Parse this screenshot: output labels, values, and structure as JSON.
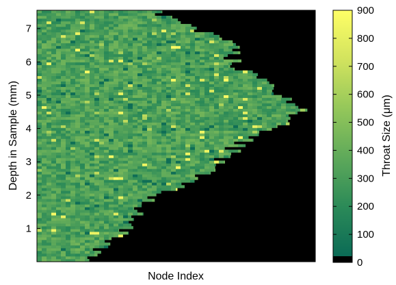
{
  "chart_data": {
    "type": "heatmap",
    "title": "",
    "xlabel": "Node Index",
    "ylabel": "Depth in Sample (mm)",
    "colorbar_label": "Throat Size (μm)",
    "ylim": [
      0,
      7.55
    ],
    "yticks": [
      1,
      2,
      3,
      4,
      5,
      6,
      7
    ],
    "xticks": [],
    "clim": [
      0,
      900
    ],
    "cticks": [
      0,
      100,
      200,
      300,
      400,
      500,
      600,
      700,
      800,
      900
    ],
    "colormap": [
      "#000000",
      "#0b6b56",
      "#2b8a58",
      "#5ea95a",
      "#94c75a",
      "#d2e35e",
      "#ffff66"
    ],
    "typical_throat_size_um": 300,
    "max_throat_size_um": 900,
    "background_value_um": 0,
    "profile_extent_fraction": {
      "depth_mm": [
        0.0,
        0.5,
        1.0,
        1.5,
        2.0,
        2.5,
        3.0,
        3.5,
        4.0,
        4.5,
        5.0,
        5.5,
        6.0,
        6.5,
        7.0,
        7.5
      ],
      "extent": [
        0.17,
        0.25,
        0.33,
        0.35,
        0.42,
        0.58,
        0.66,
        0.72,
        0.86,
        0.95,
        0.88,
        0.8,
        0.7,
        0.72,
        0.55,
        0.44
      ]
    }
  }
}
